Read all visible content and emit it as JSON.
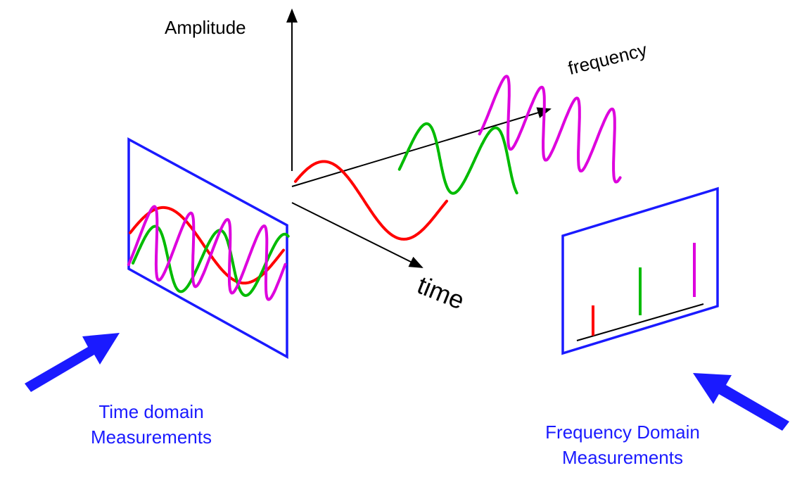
{
  "axes": {
    "amplitude_label": "Amplitude",
    "frequency_label": "frequency",
    "time_label": "time"
  },
  "captions": {
    "time_domain_line1": "Time domain",
    "time_domain_line2": "Measurements",
    "frequency_domain_line1": "Frequency Domain",
    "frequency_domain_line2": "Measurements"
  },
  "colors": {
    "low_frequency": "#ff0000",
    "mid_frequency": "#00bb00",
    "high_frequency": "#dd00dd",
    "panel": "#1a1aff",
    "axis": "#000000"
  }
}
